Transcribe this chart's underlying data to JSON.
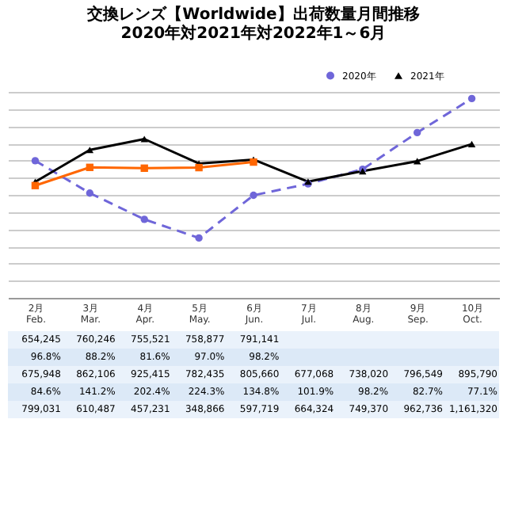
{
  "chart_data": {
    "type": "line",
    "title": "交換レンズ【Worldwide】出荷数量月間推移\n2020年対2021年対2022年1～6月",
    "categories": [
      "2月 Feb.",
      "3月 Mar.",
      "4月 Apr.",
      "5月 May.",
      "6月 Jun.",
      "7月 Jul.",
      "8月 Aug.",
      "9月 Sep.",
      "10月 Oct."
    ],
    "series": [
      {
        "name": "2020年",
        "color": "#6f66d9",
        "marker": "circle",
        "line_style": "dashed",
        "values": [
          799031,
          610487,
          457231,
          348866,
          597719,
          664324,
          749370,
          962736,
          1161320
        ],
        "value_labels": [
          "799,031",
          "610,487",
          "457,231",
          "348,866",
          "597,719",
          "664,324",
          "749,370",
          "962,736",
          "1,161,320"
        ]
      },
      {
        "name": "2021年",
        "color": "#000000",
        "marker": "triangle",
        "line_style": "solid",
        "values": [
          675948,
          862106,
          925415,
          782435,
          805660,
          677068,
          738020,
          796549,
          895790
        ],
        "value_labels": [
          "675,948",
          "862,106",
          "925,415",
          "782,435",
          "805,660",
          "677,068",
          "738,020",
          "796,549",
          "895,790"
        ]
      },
      {
        "color": "#ff6600",
        "marker": "square",
        "line_style": "solid",
        "values": [
          654245,
          760246,
          755521,
          758877,
          791141,
          null,
          null,
          null,
          null
        ],
        "value_labels": [
          "654,245",
          "760,246",
          "755,521",
          "758,877",
          "791,141",
          null,
          null,
          null,
          null
        ]
      }
    ],
    "annotations": [
      "96.8%",
      "88.2%",
      "81.6%",
      "97.0%",
      "98.2%",
      "84.6%",
      "141.2%",
      "202.4%",
      "224.3%",
      "134.8%",
      "101.9%",
      "98.2%",
      "82.7%",
      "77.1%"
    ],
    "grid": "y",
    "tick_labels": "x",
    "legend": "top right"
  }
}
